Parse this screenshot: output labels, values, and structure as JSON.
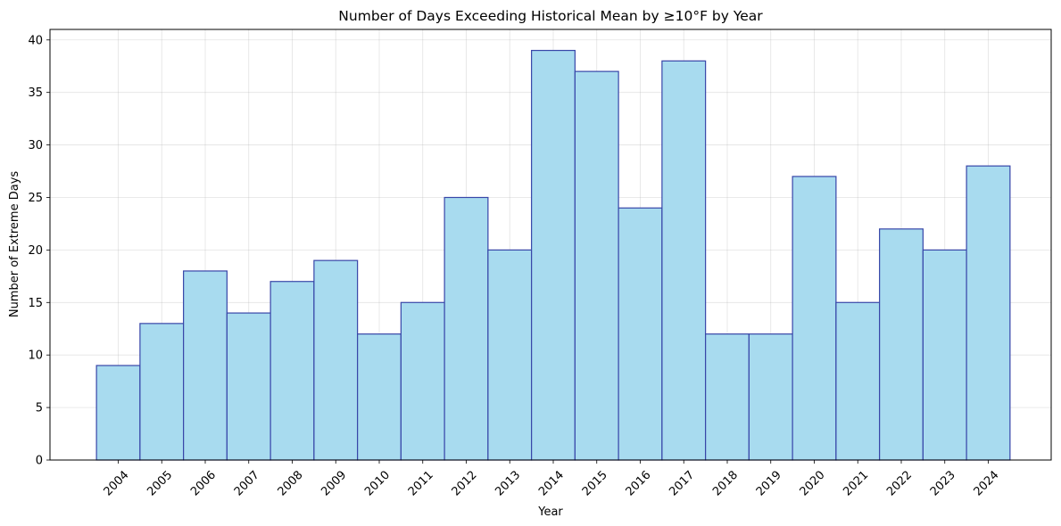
{
  "chart_data": {
    "type": "bar",
    "title": "Number of Days Exceeding Historical Mean by ≥10°F by Year",
    "xlabel": "Year",
    "ylabel": "Number of Extreme Days",
    "categories": [
      "2004",
      "2005",
      "2006",
      "2007",
      "2008",
      "2009",
      "2010",
      "2011",
      "2012",
      "2013",
      "2014",
      "2015",
      "2016",
      "2017",
      "2018",
      "2019",
      "2020",
      "2021",
      "2022",
      "2023",
      "2024"
    ],
    "values": [
      9,
      13,
      18,
      14,
      17,
      19,
      12,
      15,
      25,
      20,
      39,
      37,
      24,
      38,
      12,
      12,
      27,
      15,
      22,
      20,
      28
    ],
    "ylim": [
      0,
      41
    ],
    "yticks": [
      0,
      5,
      10,
      15,
      20,
      25,
      30,
      35,
      40
    ],
    "grid": true,
    "bar_color": "#a8dbef",
    "bar_edge_color": "#3846a8",
    "x_tick_rotation": 45
  }
}
